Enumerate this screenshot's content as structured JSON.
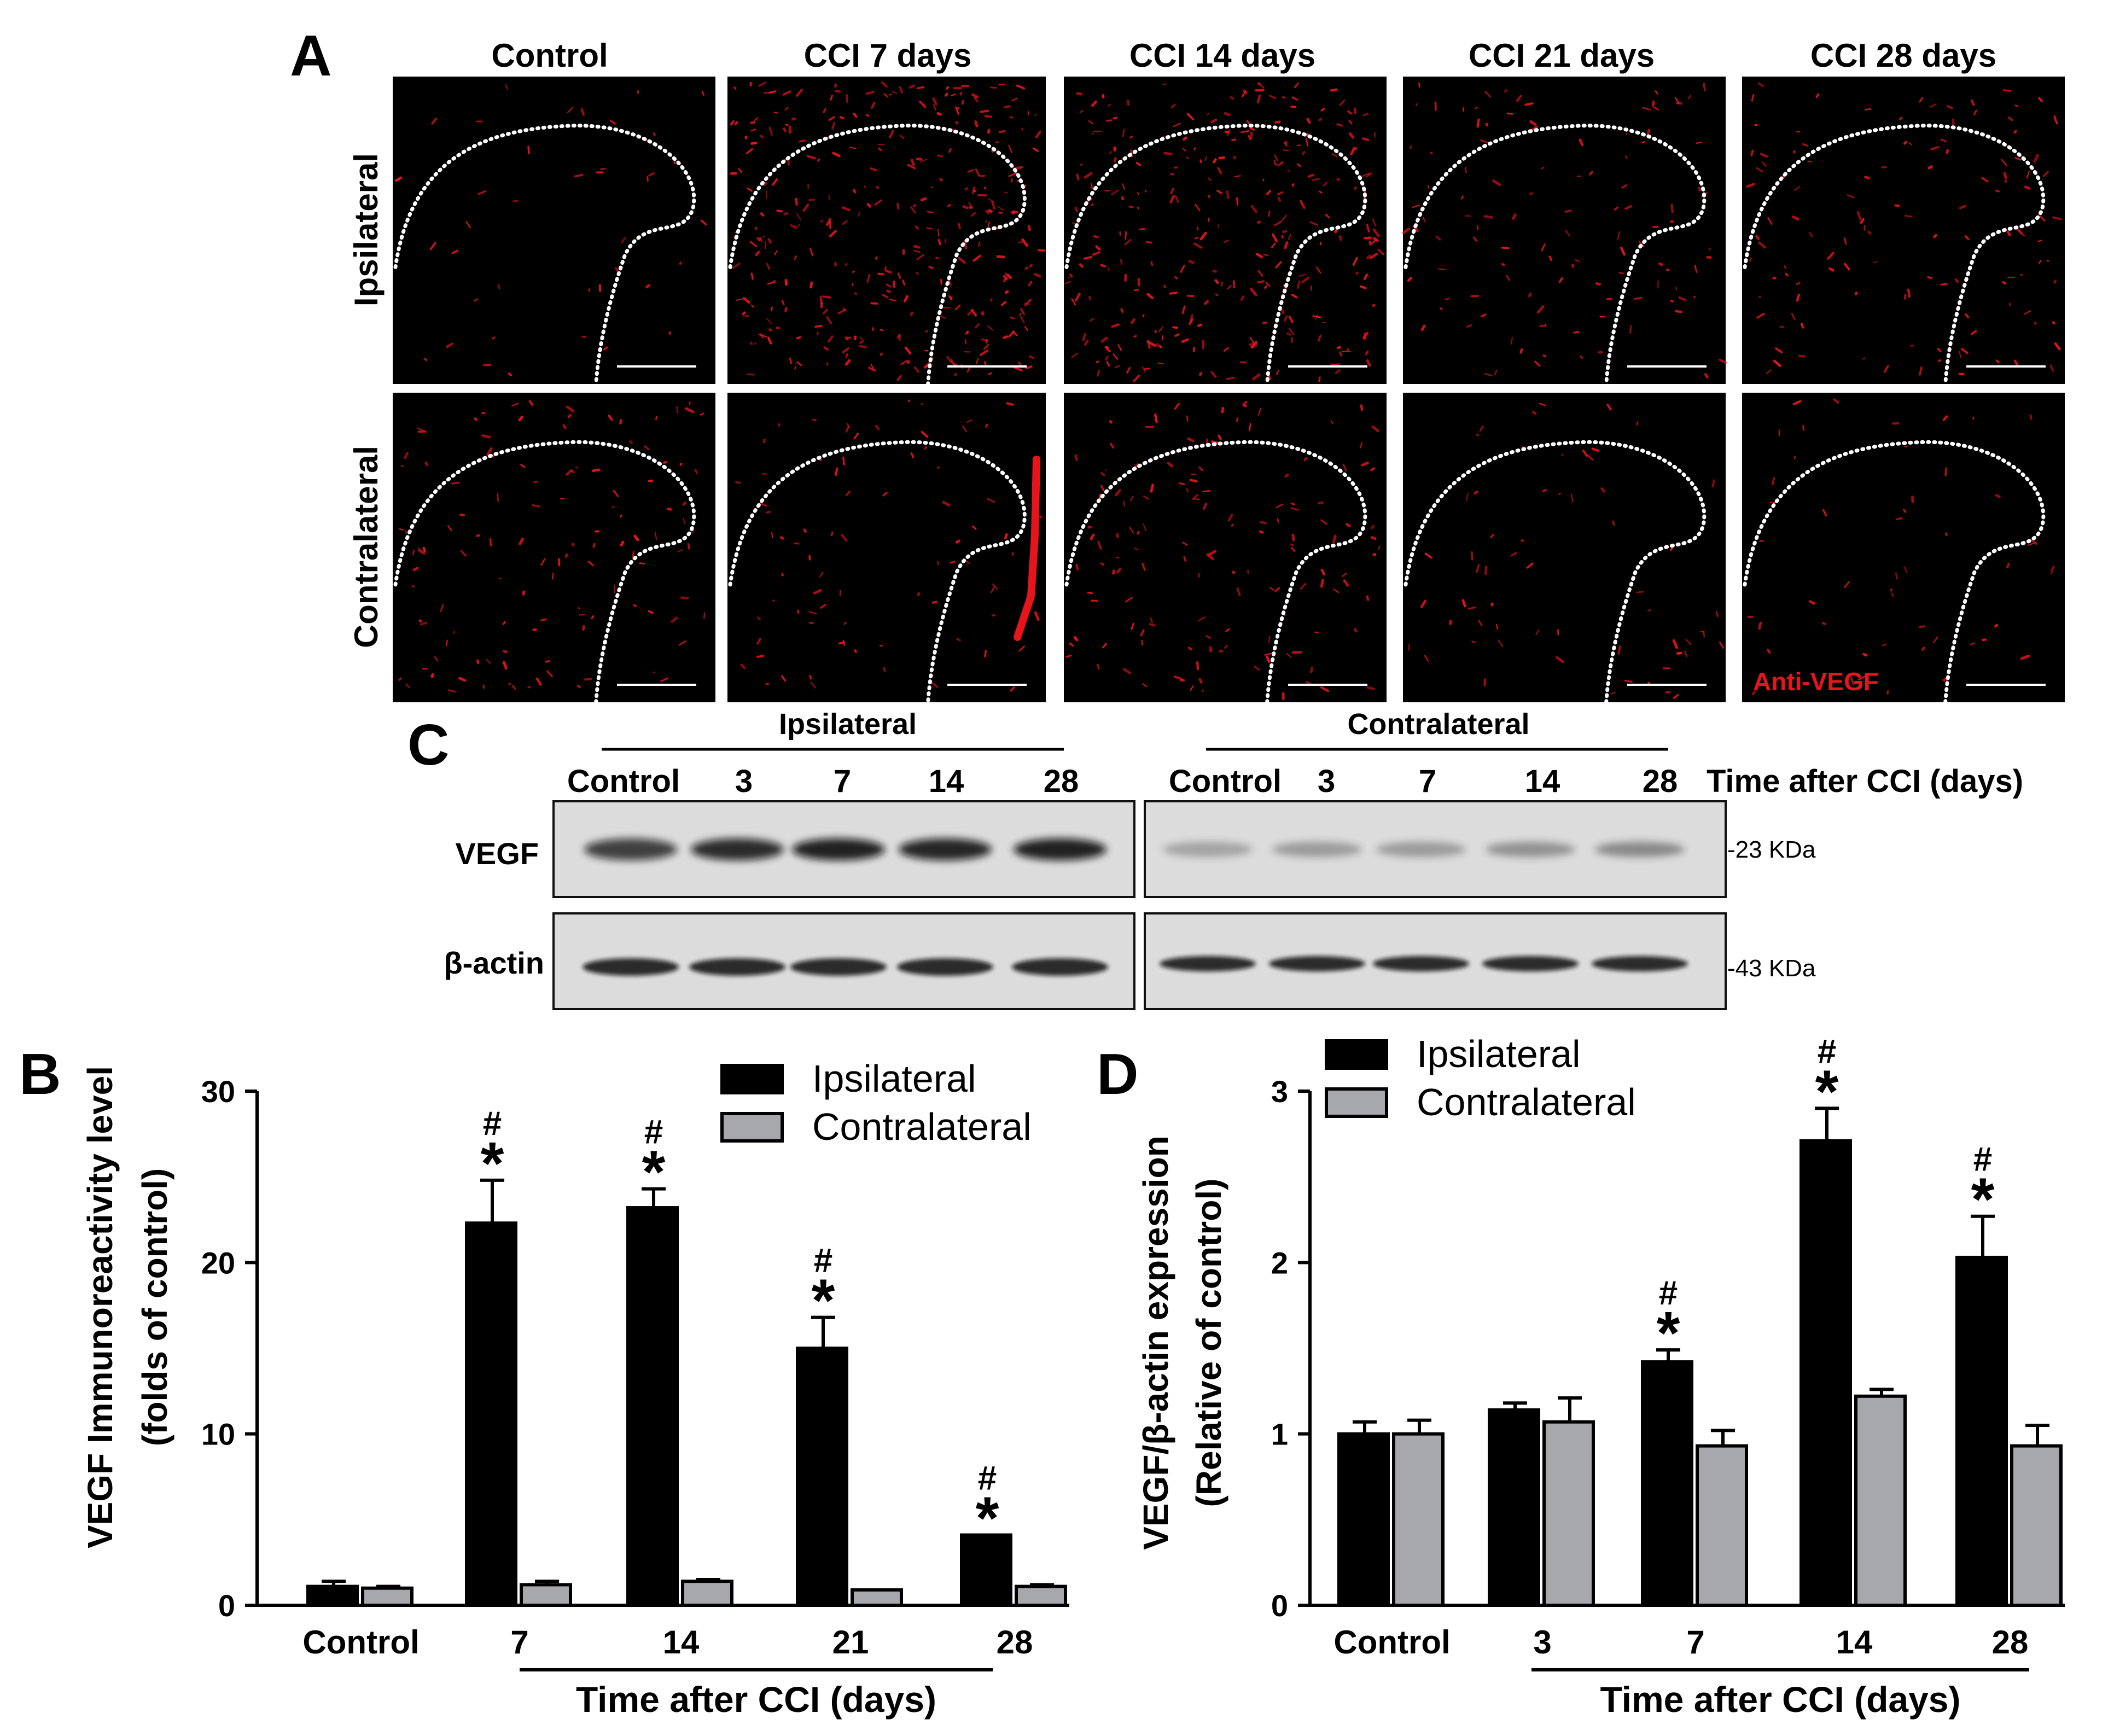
{
  "panels": {
    "a": {
      "letter": "A",
      "columns": [
        "Control",
        "CCI 7 days",
        "CCI 14 days",
        "CCI 21 days",
        "CCI 28 days"
      ],
      "rows": [
        "Ipsilateral",
        "Contralateral"
      ],
      "stain_label": "Anti-VEGF",
      "stain_color": "#e8141c"
    },
    "c": {
      "letter": "C",
      "groups": [
        "Ipsilateral",
        "Contralateral"
      ],
      "lanes": [
        "Control",
        "3",
        "7",
        "14",
        "28"
      ],
      "lanes_title": "Time after CCI (days)",
      "bands": [
        "VEGF",
        "β-actin"
      ],
      "markers": [
        "-23 KDa",
        "-43 KDa"
      ]
    },
    "b": {
      "letter": "B"
    },
    "d": {
      "letter": "D"
    }
  },
  "chart_data": [
    {
      "type": "bar",
      "panel": "B",
      "ylabel_line1": "VEGF Immunoreactivity level",
      "ylabel_line2": "(folds of control)",
      "xlabel": "Time after CCI (days)",
      "categories": [
        "Control",
        "7",
        "14",
        "21",
        "28"
      ],
      "ylim": [
        0,
        30
      ],
      "yticks": [
        0,
        10,
        20,
        30
      ],
      "series": [
        {
          "name": "Ipsilateral",
          "color": "#000000",
          "values": [
            1.1,
            22.3,
            23.2,
            15.0,
            4.1
          ],
          "errors": [
            0.3,
            2.5,
            1.1,
            1.8,
            0.0
          ]
        },
        {
          "name": "Contralateral",
          "color": "#a7a8ac",
          "values": [
            1.0,
            1.2,
            1.4,
            0.9,
            1.1
          ],
          "errors": [
            0.1,
            0.2,
            0.1,
            0.0,
            0.1
          ]
        }
      ],
      "annotations": [
        "",
        "*#",
        "*#",
        "*#",
        "*#"
      ],
      "legend": "top-right",
      "grid": false
    },
    {
      "type": "bar",
      "panel": "D",
      "ylabel_line1": "VEGF/β-actin expression",
      "ylabel_line2": "(Relative of control)",
      "xlabel": "Time after CCI (days)",
      "categories": [
        "Control",
        "3",
        "7",
        "14",
        "28"
      ],
      "ylim": [
        0,
        3
      ],
      "yticks": [
        0,
        1,
        2,
        3
      ],
      "series": [
        {
          "name": "Ipsilateral",
          "color": "#000000",
          "values": [
            1.0,
            1.14,
            1.42,
            2.71,
            2.03
          ],
          "errors": [
            0.07,
            0.04,
            0.07,
            0.19,
            0.24
          ]
        },
        {
          "name": "Contralateral",
          "color": "#a7a8ac",
          "values": [
            1.0,
            1.07,
            0.93,
            1.22,
            0.93
          ],
          "errors": [
            0.08,
            0.14,
            0.09,
            0.04,
            0.12
          ]
        }
      ],
      "annotations": [
        "",
        "",
        "*#",
        "*#",
        "*#"
      ],
      "legend": "top-left",
      "grid": false
    }
  ]
}
